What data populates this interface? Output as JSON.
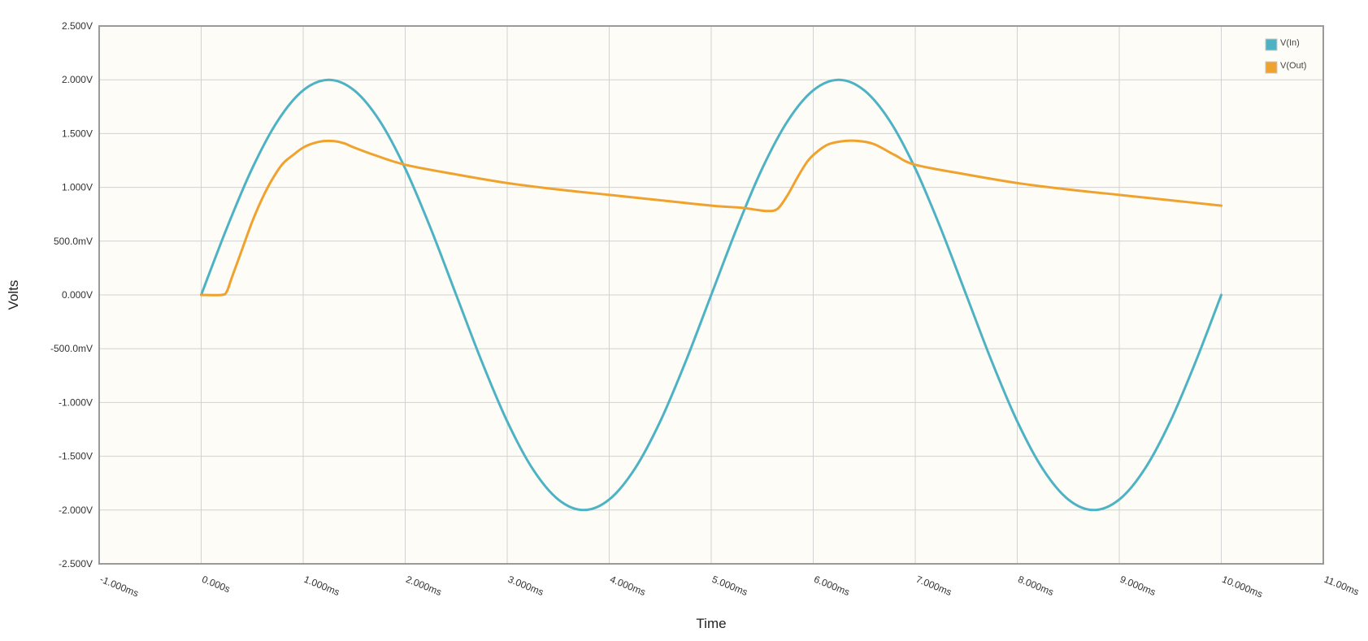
{
  "chart_data": {
    "type": "line",
    "title": "",
    "xlabel": "Time",
    "ylabel": "Volts",
    "xlim": [
      -1.0,
      11.0
    ],
    "ylim": [
      -2.5,
      2.5
    ],
    "x_unit": "ms",
    "y_unit": "V",
    "grid": true,
    "legend_position": "top-right",
    "plot_background": "#fdfcf6",
    "x_ticks": [
      {
        "value": -1,
        "label": "-1.000ms"
      },
      {
        "value": 0,
        "label": "0.000s"
      },
      {
        "value": 1,
        "label": "1.000ms"
      },
      {
        "value": 2,
        "label": "2.000ms"
      },
      {
        "value": 3,
        "label": "3.000ms"
      },
      {
        "value": 4,
        "label": "4.000ms"
      },
      {
        "value": 5,
        "label": "5.000ms"
      },
      {
        "value": 6,
        "label": "6.000ms"
      },
      {
        "value": 7,
        "label": "7.000ms"
      },
      {
        "value": 8,
        "label": "8.000ms"
      },
      {
        "value": 9,
        "label": "9.000ms"
      },
      {
        "value": 10,
        "label": "10.000ms"
      },
      {
        "value": 11,
        "label": "11.00ms"
      }
    ],
    "y_ticks": [
      {
        "value": 2.5,
        "label": "2.500V"
      },
      {
        "value": 2.0,
        "label": "2.000V"
      },
      {
        "value": 1.5,
        "label": "1.500V"
      },
      {
        "value": 1.0,
        "label": "1.000V"
      },
      {
        "value": 0.5,
        "label": "500.0mV"
      },
      {
        "value": 0.0,
        "label": "0.000V"
      },
      {
        "value": -0.5,
        "label": "-500.0mV"
      },
      {
        "value": -1.0,
        "label": "-1.000V"
      },
      {
        "value": -1.5,
        "label": "-1.500V"
      },
      {
        "value": -2.0,
        "label": "-2.000V"
      },
      {
        "value": -2.5,
        "label": "-2.500V"
      }
    ],
    "series": [
      {
        "name": "V(In)",
        "color": "#4db3c4",
        "x": [
          0,
          0.25,
          0.5,
          0.75,
          1.0,
          1.25,
          1.5,
          1.75,
          2.0,
          2.25,
          2.5,
          2.75,
          3.0,
          3.25,
          3.5,
          3.75,
          4.0,
          4.25,
          4.5,
          4.75,
          5.0,
          5.25,
          5.5,
          5.75,
          6.0,
          6.25,
          6.5,
          6.75,
          7.0,
          7.25,
          7.5,
          7.75,
          8.0,
          8.25,
          8.5,
          8.75,
          9.0,
          9.25,
          9.5,
          9.75,
          10.0
        ],
        "y": [
          0.0,
          0.618,
          1.176,
          1.618,
          1.902,
          2.0,
          1.902,
          1.618,
          1.176,
          0.618,
          0.0,
          -0.618,
          -1.176,
          -1.618,
          -1.902,
          -2.0,
          -1.902,
          -1.618,
          -1.176,
          -0.618,
          0.0,
          0.618,
          1.176,
          1.618,
          1.902,
          2.0,
          1.902,
          1.618,
          1.176,
          0.618,
          0.0,
          -0.618,
          -1.176,
          -1.618,
          -1.902,
          -2.0,
          -1.902,
          -1.618,
          -1.176,
          -0.618,
          0.0
        ]
      },
      {
        "name": "V(Out)",
        "color": "#f0a22e",
        "x": [
          0,
          0.2,
          0.25,
          0.3,
          0.4,
          0.5,
          0.6,
          0.7,
          0.8,
          0.9,
          1.0,
          1.1,
          1.2,
          1.3,
          1.4,
          1.5,
          1.7,
          2.0,
          2.5,
          3.0,
          3.5,
          4.0,
          4.5,
          5.0,
          5.3,
          5.45,
          5.55,
          5.65,
          5.75,
          5.85,
          5.95,
          6.05,
          6.15,
          6.3,
          6.45,
          6.6,
          6.8,
          7.0,
          7.5,
          8.0,
          8.5,
          9.0,
          9.5,
          10.0
        ],
        "y": [
          0.0,
          0.0,
          0.03,
          0.16,
          0.42,
          0.68,
          0.9,
          1.08,
          1.22,
          1.3,
          1.37,
          1.41,
          1.43,
          1.43,
          1.41,
          1.37,
          1.3,
          1.21,
          1.12,
          1.04,
          0.98,
          0.93,
          0.88,
          0.83,
          0.81,
          0.79,
          0.78,
          0.8,
          0.93,
          1.1,
          1.25,
          1.34,
          1.4,
          1.43,
          1.43,
          1.4,
          1.3,
          1.21,
          1.12,
          1.04,
          0.98,
          0.93,
          0.88,
          0.83
        ]
      }
    ]
  }
}
